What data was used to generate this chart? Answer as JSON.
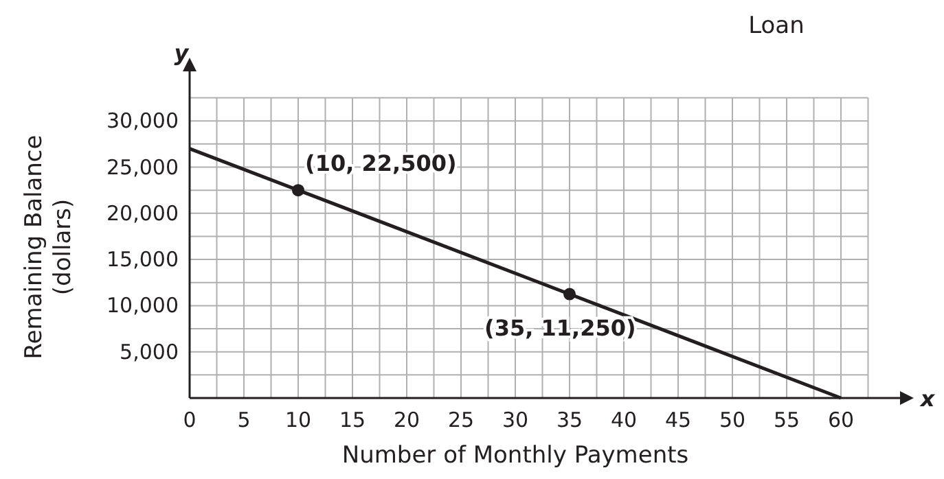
{
  "chart_data": {
    "type": "line",
    "title": "Loan",
    "xlabel": "Number of Monthly Payments",
    "ylabel": "Remaining Balance (dollars)",
    "xlim": [
      0,
      62.5
    ],
    "ylim": [
      0,
      32500
    ],
    "xticks": [
      0,
      5,
      10,
      15,
      20,
      25,
      30,
      35,
      40,
      45,
      50,
      55,
      60
    ],
    "yticks": [
      {
        "value": 5000,
        "label": "5,000"
      },
      {
        "value": 10000,
        "label": "10,000"
      },
      {
        "value": 15000,
        "label": "15,000"
      },
      {
        "value": 20000,
        "label": "20,000"
      },
      {
        "value": 25000,
        "label": "25,000"
      },
      {
        "value": 30000,
        "label": "30,000"
      }
    ],
    "grid": true,
    "series": [
      {
        "color": "#231f20",
        "x": [
          0,
          60
        ],
        "values": [
          27000,
          0
        ],
        "marker": "none"
      },
      {
        "type": "scatter",
        "color": "#231f20",
        "x": [
          10,
          35
        ],
        "values": [
          22500,
          11250
        ],
        "marker": "circle"
      }
    ],
    "annotations": [
      {
        "text": "(10, 22,500)",
        "x": 10,
        "y": 22500
      },
      {
        "text": "(35, 11,250)",
        "x": 35,
        "y": 11250
      },
      "x",
      "y"
    ]
  }
}
